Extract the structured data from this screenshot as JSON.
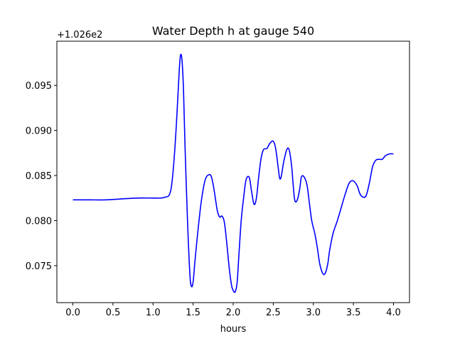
{
  "chart_data": {
    "type": "line",
    "title": "Water Depth h at gauge 540",
    "xlabel": "hours",
    "ylabel": "",
    "offset_label": "+1.026e2",
    "xlim": [
      -0.2,
      4.2
    ],
    "ylim": [
      0.0709,
      0.0999
    ],
    "x_ticks": [
      0.0,
      0.5,
      1.0,
      1.5,
      2.0,
      2.5,
      3.0,
      3.5,
      4.0
    ],
    "x_tick_labels": [
      "0.0",
      "0.5",
      "1.0",
      "1.5",
      "2.0",
      "2.5",
      "3.0",
      "3.5",
      "4.0"
    ],
    "y_ticks": [
      0.075,
      0.08,
      0.085,
      0.09,
      0.095
    ],
    "y_tick_labels": [
      "0.075",
      "0.080",
      "0.085",
      "0.090",
      "0.095"
    ],
    "grid": false,
    "series": [
      {
        "name": "",
        "color": "#0000ff",
        "x": [
          0.0,
          0.2,
          0.4,
          0.6,
          0.8,
          1.0,
          1.1,
          1.15,
          1.2,
          1.23,
          1.26,
          1.29,
          1.32,
          1.34,
          1.36,
          1.38,
          1.4,
          1.43,
          1.46,
          1.48,
          1.5,
          1.52,
          1.55,
          1.6,
          1.65,
          1.7,
          1.73,
          1.76,
          1.8,
          1.83,
          1.86,
          1.89,
          1.92,
          1.95,
          1.98,
          2.01,
          2.03,
          2.05,
          2.07,
          2.1,
          2.13,
          2.16,
          2.2,
          2.23,
          2.26,
          2.29,
          2.32,
          2.35,
          2.38,
          2.42,
          2.46,
          2.5,
          2.53,
          2.56,
          2.58,
          2.6,
          2.63,
          2.67,
          2.7,
          2.73,
          2.75,
          2.77,
          2.8,
          2.83,
          2.85,
          2.88,
          2.92,
          2.95,
          2.98,
          3.02,
          3.05,
          3.08,
          3.12,
          3.15,
          3.18,
          3.2,
          3.22,
          3.25,
          3.3,
          3.35,
          3.4,
          3.45,
          3.5,
          3.55,
          3.58,
          3.62,
          3.66,
          3.7,
          3.74,
          3.78,
          3.82,
          3.86,
          3.9,
          3.95,
          4.0
        ],
        "y": [
          0.0823,
          0.0823,
          0.0823,
          0.0824,
          0.0825,
          0.0825,
          0.0825,
          0.0826,
          0.0828,
          0.0838,
          0.0865,
          0.0905,
          0.0955,
          0.0982,
          0.0979,
          0.0945,
          0.088,
          0.08,
          0.074,
          0.0727,
          0.0732,
          0.0752,
          0.078,
          0.082,
          0.0845,
          0.0851,
          0.0848,
          0.0835,
          0.0812,
          0.0804,
          0.0805,
          0.0798,
          0.0775,
          0.0748,
          0.0728,
          0.0721,
          0.0722,
          0.0732,
          0.076,
          0.08,
          0.0825,
          0.0845,
          0.0848,
          0.0832,
          0.0818,
          0.0825,
          0.085,
          0.087,
          0.0879,
          0.088,
          0.0886,
          0.0888,
          0.088,
          0.086,
          0.0847,
          0.0849,
          0.0865,
          0.0879,
          0.0878,
          0.086,
          0.0838,
          0.0822,
          0.0823,
          0.0835,
          0.0848,
          0.0849,
          0.084,
          0.082,
          0.08,
          0.0785,
          0.077,
          0.0752,
          0.0741,
          0.0742,
          0.0752,
          0.0765,
          0.0775,
          0.0787,
          0.08,
          0.0815,
          0.083,
          0.0842,
          0.0844,
          0.0838,
          0.083,
          0.0826,
          0.0828,
          0.0842,
          0.086,
          0.0867,
          0.0868,
          0.0868,
          0.0872,
          0.0874,
          0.0874
        ]
      }
    ]
  }
}
